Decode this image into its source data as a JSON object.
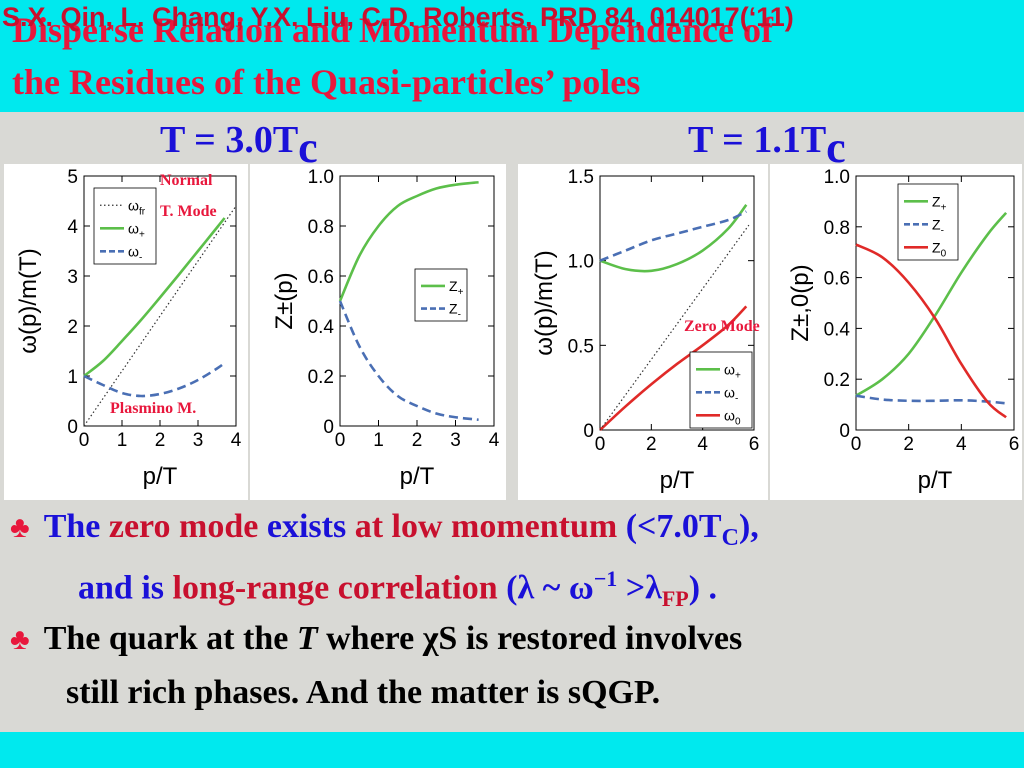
{
  "title_line1": "Disperse Relation and Momentum Dependence of",
  "title_line2": "the Residues of the Quasi-particles’ poles",
  "panel_left_head": {
    "main": "T = 3.0T",
    "sub": "c"
  },
  "panel_right_head": {
    "main": "T = 1.1T",
    "sub": "c"
  },
  "annotations": {
    "normal_mode_1": "Normal",
    "normal_mode_2": "T. Mode",
    "plasmino": "Plasmino M.",
    "zero_mode": "Zero Mode"
  },
  "colors": {
    "green": "#5cbf4a",
    "blue": "#4a6fb4",
    "red": "#e02a28",
    "dotted": "#333333",
    "title": "#e8173c",
    "bar": "#00e9ee",
    "text_blue": "#1a10d8"
  },
  "chart_data": [
    {
      "type": "line",
      "ylabel": "ω(p)/m(T)",
      "xlabel": "p/T",
      "xlim": [
        0,
        4
      ],
      "ylim": [
        0,
        5
      ],
      "xticks": [
        "0",
        "1",
        "2",
        "3",
        "4"
      ],
      "yticks": [
        "0",
        "1",
        "2",
        "3",
        "4",
        "5"
      ],
      "legend": "top-left",
      "series": [
        {
          "name": "ω",
          "sub": "fr",
          "style": "dotted",
          "x": [
            0,
            4
          ],
          "y": [
            0,
            4.4
          ]
        },
        {
          "name": "ω",
          "sub": "+",
          "style": "solid",
          "color": "green",
          "x": [
            0,
            0.5,
            1,
            1.5,
            2,
            2.5,
            3,
            3.5,
            3.7
          ],
          "y": [
            1,
            1.3,
            1.7,
            2.12,
            2.57,
            3.03,
            3.5,
            3.97,
            4.16
          ]
        },
        {
          "name": "ω",
          "sub": "-",
          "style": "dashed",
          "color": "blue",
          "x": [
            0,
            0.5,
            1,
            1.5,
            2,
            2.5,
            3,
            3.5,
            3.7
          ],
          "y": [
            1,
            0.82,
            0.66,
            0.6,
            0.64,
            0.75,
            0.92,
            1.15,
            1.26
          ]
        }
      ]
    },
    {
      "type": "line",
      "ylabel": "Z±(p)",
      "xlabel": "p/T",
      "xlim": [
        0,
        4
      ],
      "ylim": [
        0,
        1
      ],
      "xticks": [
        "0",
        "1",
        "2",
        "3",
        "4"
      ],
      "yticks": [
        "0",
        "0.2",
        "0.4",
        "0.6",
        "0.8",
        "1.0"
      ],
      "legend": "right",
      "series": [
        {
          "name": "Z",
          "sub": "+",
          "style": "solid",
          "color": "green",
          "x": [
            0,
            0.5,
            1,
            1.5,
            2,
            2.5,
            3,
            3.6
          ],
          "y": [
            0.5,
            0.68,
            0.8,
            0.88,
            0.92,
            0.95,
            0.965,
            0.975
          ]
        },
        {
          "name": "Z",
          "sub": "-",
          "style": "dashed",
          "color": "blue",
          "x": [
            0,
            0.5,
            1,
            1.5,
            2,
            2.5,
            3,
            3.6
          ],
          "y": [
            0.5,
            0.32,
            0.2,
            0.12,
            0.08,
            0.05,
            0.035,
            0.025
          ]
        }
      ]
    },
    {
      "type": "line",
      "ylabel": "ω(p)/m(T)",
      "xlabel": "p/T",
      "xlim": [
        0,
        6
      ],
      "ylim": [
        0,
        1.5
      ],
      "xticks": [
        "0",
        "2",
        "4",
        "6"
      ],
      "yticks": [
        "0",
        "0.5",
        "1.0",
        "1.5"
      ],
      "legend": "bottom-right",
      "series": [
        {
          "name": "ω",
          "sub": "+",
          "style": "solid",
          "color": "green",
          "x": [
            0,
            1,
            2,
            3,
            4,
            5,
            5.7
          ],
          "y": [
            1,
            0.95,
            0.94,
            0.98,
            1.06,
            1.19,
            1.33
          ]
        },
        {
          "name": "ω",
          "sub": "-",
          "style": "dashed",
          "color": "blue",
          "x": [
            0,
            1,
            2,
            3,
            4,
            5,
            5.7
          ],
          "y": [
            1,
            1.06,
            1.12,
            1.16,
            1.2,
            1.24,
            1.29
          ]
        },
        {
          "name": "ω",
          "sub": "0",
          "style": "solid",
          "color": "red",
          "x": [
            0,
            1,
            2,
            3,
            4,
            5,
            5.7
          ],
          "y": [
            0,
            0.14,
            0.27,
            0.39,
            0.5,
            0.62,
            0.73
          ]
        },
        {
          "name": "",
          "sub": "",
          "style": "dotted",
          "x": [
            0,
            5.8
          ],
          "y": [
            0,
            1.21
          ]
        }
      ]
    },
    {
      "type": "line",
      "ylabel": "Z±,0(p)",
      "xlabel": "p/T",
      "xlim": [
        0,
        6
      ],
      "ylim": [
        0,
        1
      ],
      "xticks": [
        "0",
        "2",
        "4",
        "6"
      ],
      "yticks": [
        "0",
        "0.2",
        "0.4",
        "0.6",
        "0.8",
        "1.0"
      ],
      "legend": "top-right",
      "series": [
        {
          "name": "Z",
          "sub": "+",
          "style": "solid",
          "color": "green",
          "x": [
            0,
            1,
            2,
            3,
            4,
            5,
            5.7
          ],
          "y": [
            0.135,
            0.2,
            0.3,
            0.45,
            0.62,
            0.77,
            0.855
          ]
        },
        {
          "name": "Z",
          "sub": "-",
          "style": "dashed",
          "color": "blue",
          "x": [
            0,
            1,
            2,
            3,
            4,
            5,
            5.7
          ],
          "y": [
            0.135,
            0.12,
            0.115,
            0.115,
            0.117,
            0.112,
            0.105
          ]
        },
        {
          "name": "Z",
          "sub": "0",
          "style": "solid",
          "color": "red",
          "x": [
            0,
            1,
            2,
            3,
            4,
            5,
            5.7
          ],
          "y": [
            0.73,
            0.68,
            0.58,
            0.44,
            0.26,
            0.11,
            0.05
          ]
        }
      ]
    }
  ],
  "bullet1": {
    "club": "♣",
    "p1": "The ",
    "p2": "zero mode ",
    "p3": "exists ",
    "p4": "at low momentum ",
    "p5": "(<7.0T",
    "p5sub": "C",
    "p5end": "),"
  },
  "bullet1b": {
    "p1": "and is ",
    "p2": "long-range correlation ",
    "p3": "(λ ~ ω",
    "p3sup": "−1",
    "p4": " >λ",
    "p4sub": "FP",
    "p5": ") ."
  },
  "bullet2": {
    "club": "♣",
    "p1": "The quark at the ",
    "p2": "T",
    "p3": " where χS is restored involves"
  },
  "bullet2b": {
    "p1": "still rich phases. And the matter is sQGP."
  },
  "footer": "S.X. Qin, L. Chang, Y.X. Liu, C.D. Roberts, PRD 84, 014017(‘11)"
}
